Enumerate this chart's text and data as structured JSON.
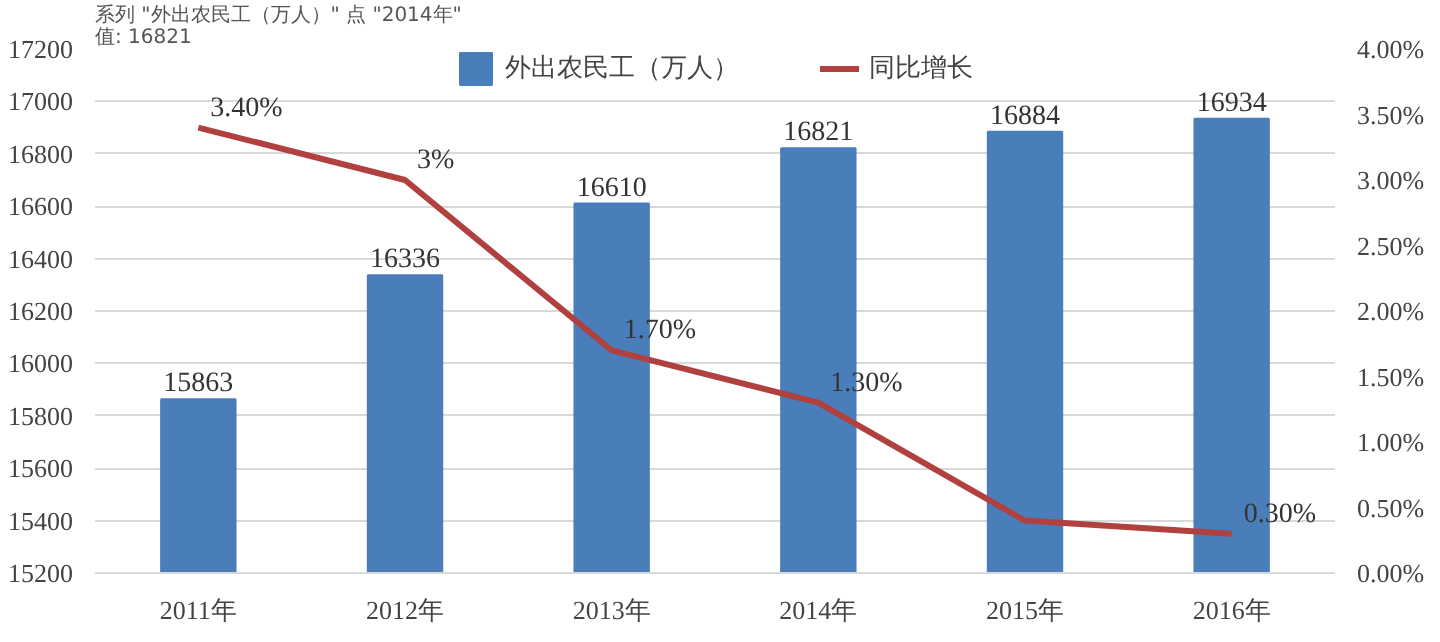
{
  "chart_data": {
    "type": "bar",
    "categories": [
      "2011年",
      "2012年",
      "2013年",
      "2014年",
      "2015年",
      "2016年"
    ],
    "series": [
      {
        "name": "外出农民工（万人）",
        "color": "#4a7ebb",
        "values": [
          15863,
          16336,
          16610,
          16821,
          16884,
          16934
        ],
        "data_labels": true
      },
      {
        "name": "同比增长",
        "type": "line",
        "axis": "y2",
        "color": "#b0413e",
        "values": [
          3.4,
          3.0,
          1.7,
          1.3,
          0.4,
          0.3
        ],
        "value_labels": [
          "3.40%",
          "3%",
          "1.70%",
          "1.30%",
          null,
          "0.30%"
        ]
      }
    ],
    "ylim": [
      15200,
      17200
    ],
    "yticks": [
      15200,
      15400,
      15600,
      15800,
      16000,
      16200,
      16400,
      16600,
      16800,
      17000,
      17200
    ],
    "y2lim": [
      0,
      4
    ],
    "y2ticks": [
      {
        "value": 0,
        "label": "0.00%"
      },
      {
        "value": 0.5,
        "label": "0.50%"
      },
      {
        "value": 1,
        "label": "1.00%"
      },
      {
        "value": 1.5,
        "label": "1.50%"
      },
      {
        "value": 2,
        "label": "2.00%"
      },
      {
        "value": 2.5,
        "label": "2.50%"
      },
      {
        "value": 3,
        "label": "3.00%"
      },
      {
        "value": 3.5,
        "label": "3.50%"
      },
      {
        "value": 4,
        "label": "4.00%"
      }
    ],
    "annotations": [
      "系列 \"外出农民工（万人）\" 点 \"2014年\"\n值: 16821"
    ],
    "grid": "y",
    "legend": "top"
  }
}
